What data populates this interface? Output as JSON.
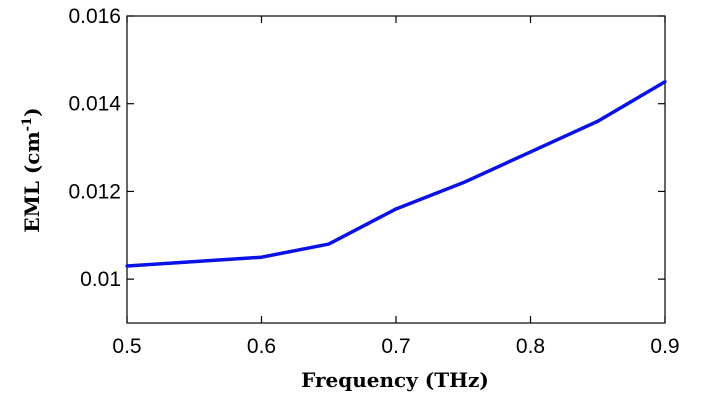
{
  "chart_data": {
    "type": "line",
    "title": "",
    "xlabel": "Frequency (THz)",
    "ylabel": {
      "main": "EML (cm",
      "superscript": "-1",
      "close": ")"
    },
    "xlim": [
      0.5,
      0.9
    ],
    "ylim": [
      0.009,
      0.016
    ],
    "xticks": [
      0.5,
      0.6,
      0.7,
      0.8,
      0.9
    ],
    "xtick_labels": [
      "0.5",
      "0.6",
      "0.7",
      "0.8",
      "0.9"
    ],
    "yticks": [
      0.01,
      0.012,
      0.014,
      0.016
    ],
    "ytick_labels": [
      "0.01",
      "0.012",
      "0.014",
      "0.016"
    ],
    "grid": false,
    "legend": "none",
    "series": [
      {
        "color": "#0a12e6",
        "x": [
          0.5,
          0.6,
          0.65,
          0.7,
          0.75,
          0.8,
          0.85,
          0.9
        ],
        "y": [
          0.0103,
          0.0105,
          0.0108,
          0.0116,
          0.0122,
          0.0129,
          0.0136,
          0.0145
        ]
      }
    ]
  }
}
